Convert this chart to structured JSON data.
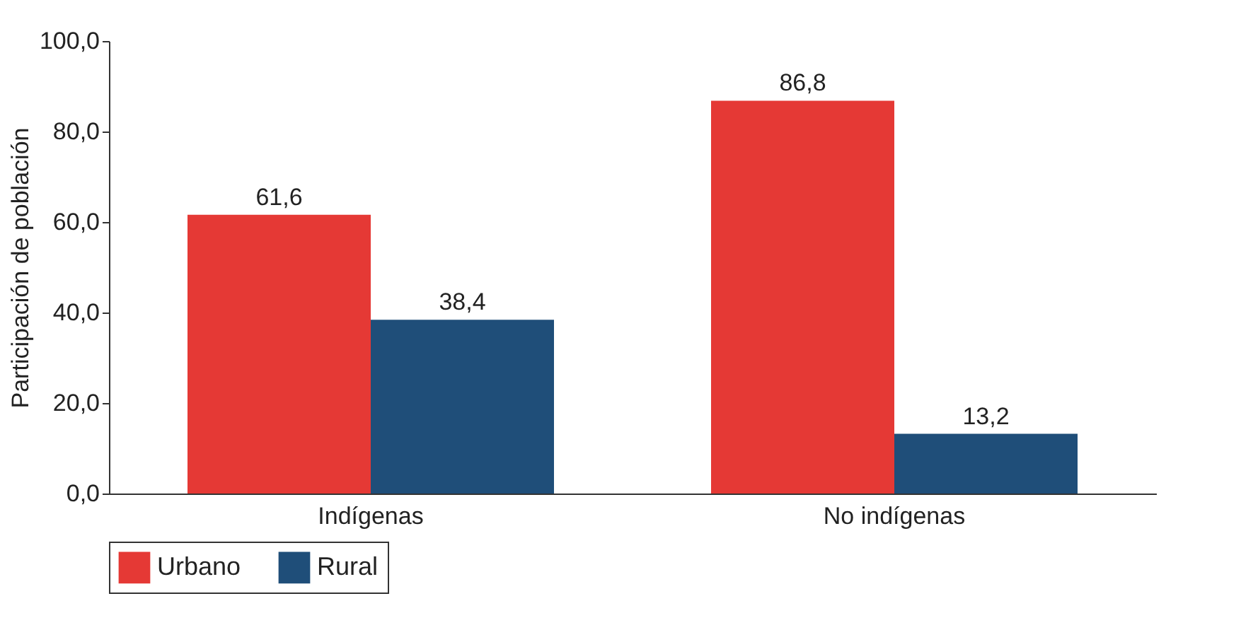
{
  "chart_data": {
    "type": "bar",
    "ylabel": "Participación de población",
    "categories": [
      "Indígenas",
      "No indígenas"
    ],
    "series": [
      {
        "name": "Urbano",
        "color": "#e53935",
        "values": [
          61.6,
          86.8
        ],
        "value_labels": [
          "61,6",
          "86,8"
        ]
      },
      {
        "name": "Rural",
        "color": "#1f4e79",
        "values": [
          38.4,
          13.2
        ],
        "value_labels": [
          "38,4",
          "13,2"
        ]
      }
    ],
    "ylim": [
      0,
      100
    ],
    "yticks": [
      {
        "value": 0,
        "label": "0,0"
      },
      {
        "value": 20,
        "label": "20,0"
      },
      {
        "value": 40,
        "label": "40,0"
      },
      {
        "value": 60,
        "label": "60,0"
      },
      {
        "value": 80,
        "label": "80,0"
      },
      {
        "value": 100,
        "label": "100,0"
      }
    ],
    "grid": false,
    "legend": "bottom"
  }
}
